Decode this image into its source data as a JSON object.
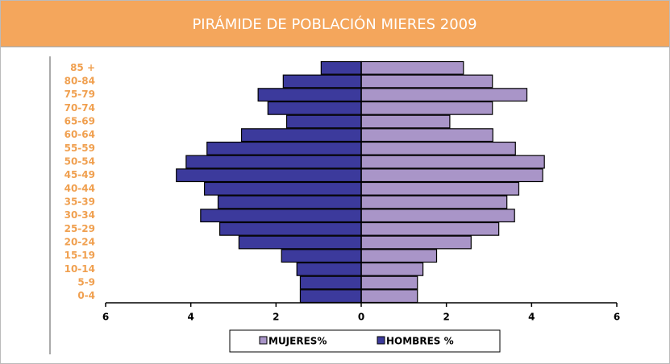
{
  "chart_data": {
    "type": "pyramid",
    "title": "PIRÁMIDE DE POBLACIÓN MIERES 2009",
    "categories": [
      "85 +",
      "80-84",
      "75-79",
      "70-74",
      "65-69",
      "60-64",
      "55-59",
      "50-54",
      "45-49",
      "40-44",
      "35-39",
      "30-34",
      "25-29",
      "20-24",
      "15-19",
      "10-14",
      "5-9",
      "0-4"
    ],
    "series": [
      {
        "name": "MUJERES%",
        "color": "#a995c8",
        "values": [
          2.4,
          3.08,
          3.89,
          3.08,
          2.08,
          3.09,
          3.62,
          4.3,
          4.26,
          3.7,
          3.42,
          3.6,
          3.23,
          2.58,
          1.77,
          1.45,
          1.32,
          1.32
        ]
      },
      {
        "name": "HOMBRES %",
        "color": "#3c3a9c",
        "values": [
          -0.94,
          -1.83,
          -2.42,
          -2.19,
          -1.75,
          -2.81,
          -3.62,
          -4.11,
          -4.34,
          -3.68,
          -3.36,
          -3.77,
          -3.32,
          -2.87,
          -1.87,
          -1.51,
          -1.43,
          -1.43
        ]
      }
    ],
    "xlim": [
      -6,
      6
    ],
    "xticks": [
      {
        "value": -6,
        "label": "6"
      },
      {
        "value": -4,
        "label": "4"
      },
      {
        "value": -2,
        "label": "2"
      },
      0,
      2,
      4,
      6
    ]
  }
}
